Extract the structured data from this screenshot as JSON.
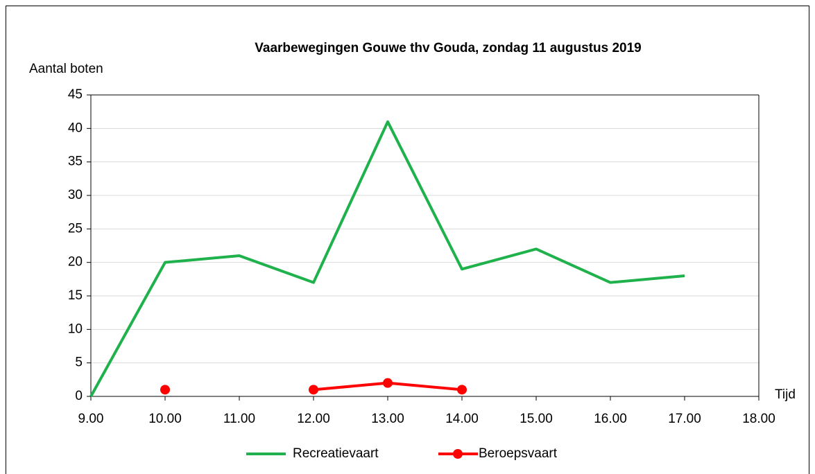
{
  "chart_data": {
    "type": "line",
    "title": "Vaarbewegingen Gouwe thv Gouda, zondag 11 augustus 2019",
    "y_label": "Aantal boten",
    "x_label": "Tijd",
    "x": [
      9,
      10,
      11,
      12,
      13,
      14,
      15,
      16,
      17
    ],
    "series": [
      {
        "name": "Recreatievaart",
        "color": "#1fb14b",
        "marker": false,
        "values": [
          0,
          20,
          21,
          17,
          41,
          19,
          22,
          17,
          18
        ]
      },
      {
        "name": "Beroepsvaart",
        "color": "#ff0000",
        "marker": true,
        "values": [
          null,
          1,
          null,
          1,
          2,
          1,
          null,
          null,
          null
        ]
      }
    ],
    "xlim": [
      9,
      18
    ],
    "xticks": [
      {
        "value": 9,
        "label": "9.00"
      },
      {
        "value": 10,
        "label": "10.00"
      },
      {
        "value": 11,
        "label": "11.00"
      },
      {
        "value": 12,
        "label": "12.00"
      },
      {
        "value": 13,
        "label": "13.00"
      },
      {
        "value": 14,
        "label": "14.00"
      },
      {
        "value": 15,
        "label": "15.00"
      },
      {
        "value": 16,
        "label": "16.00"
      },
      {
        "value": 17,
        "label": "17.00"
      },
      {
        "value": 18,
        "label": "18.00"
      }
    ],
    "ylim": [
      0,
      45
    ],
    "yticks": [
      0,
      5,
      10,
      15,
      20,
      25,
      30,
      35,
      40,
      45
    ],
    "grid": true,
    "legend": "bottom"
  }
}
